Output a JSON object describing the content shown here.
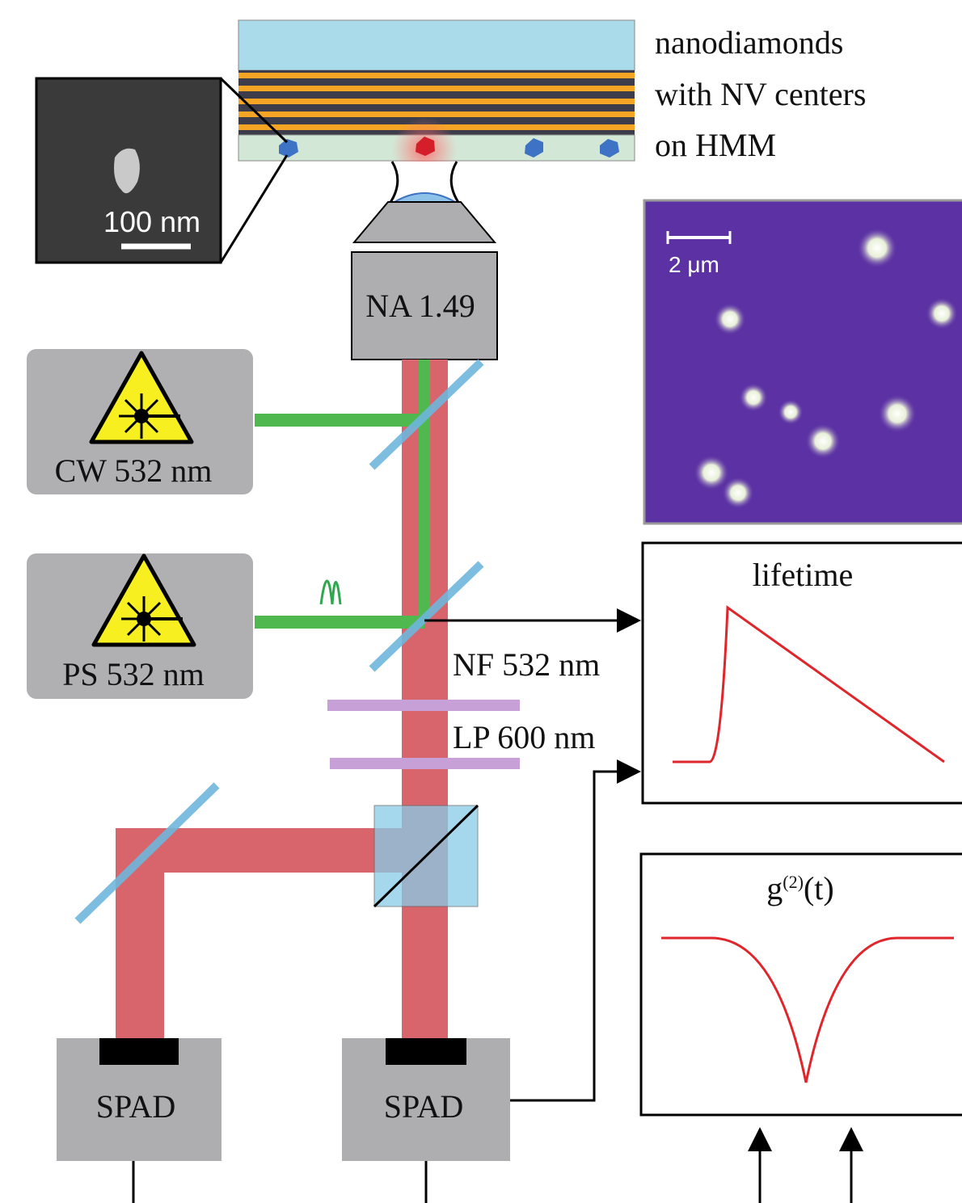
{
  "sample_label": [
    "nanodiamonds",
    "with NV centers",
    "on HMM"
  ],
  "sem_scale": "100 nm",
  "objective": "NA 1.49",
  "lasers": [
    "CW 532 nm",
    "PS 532 nm"
  ],
  "image_scale": "2 μm",
  "filters": [
    "NF 532 nm",
    "LP 600 nm"
  ],
  "detectors": [
    "SPAD",
    "SPAD"
  ],
  "plots": {
    "lifetime": "lifetime",
    "g2": {
      "base": "g",
      "sup": "(2)",
      "arg": "(t)"
    }
  }
}
